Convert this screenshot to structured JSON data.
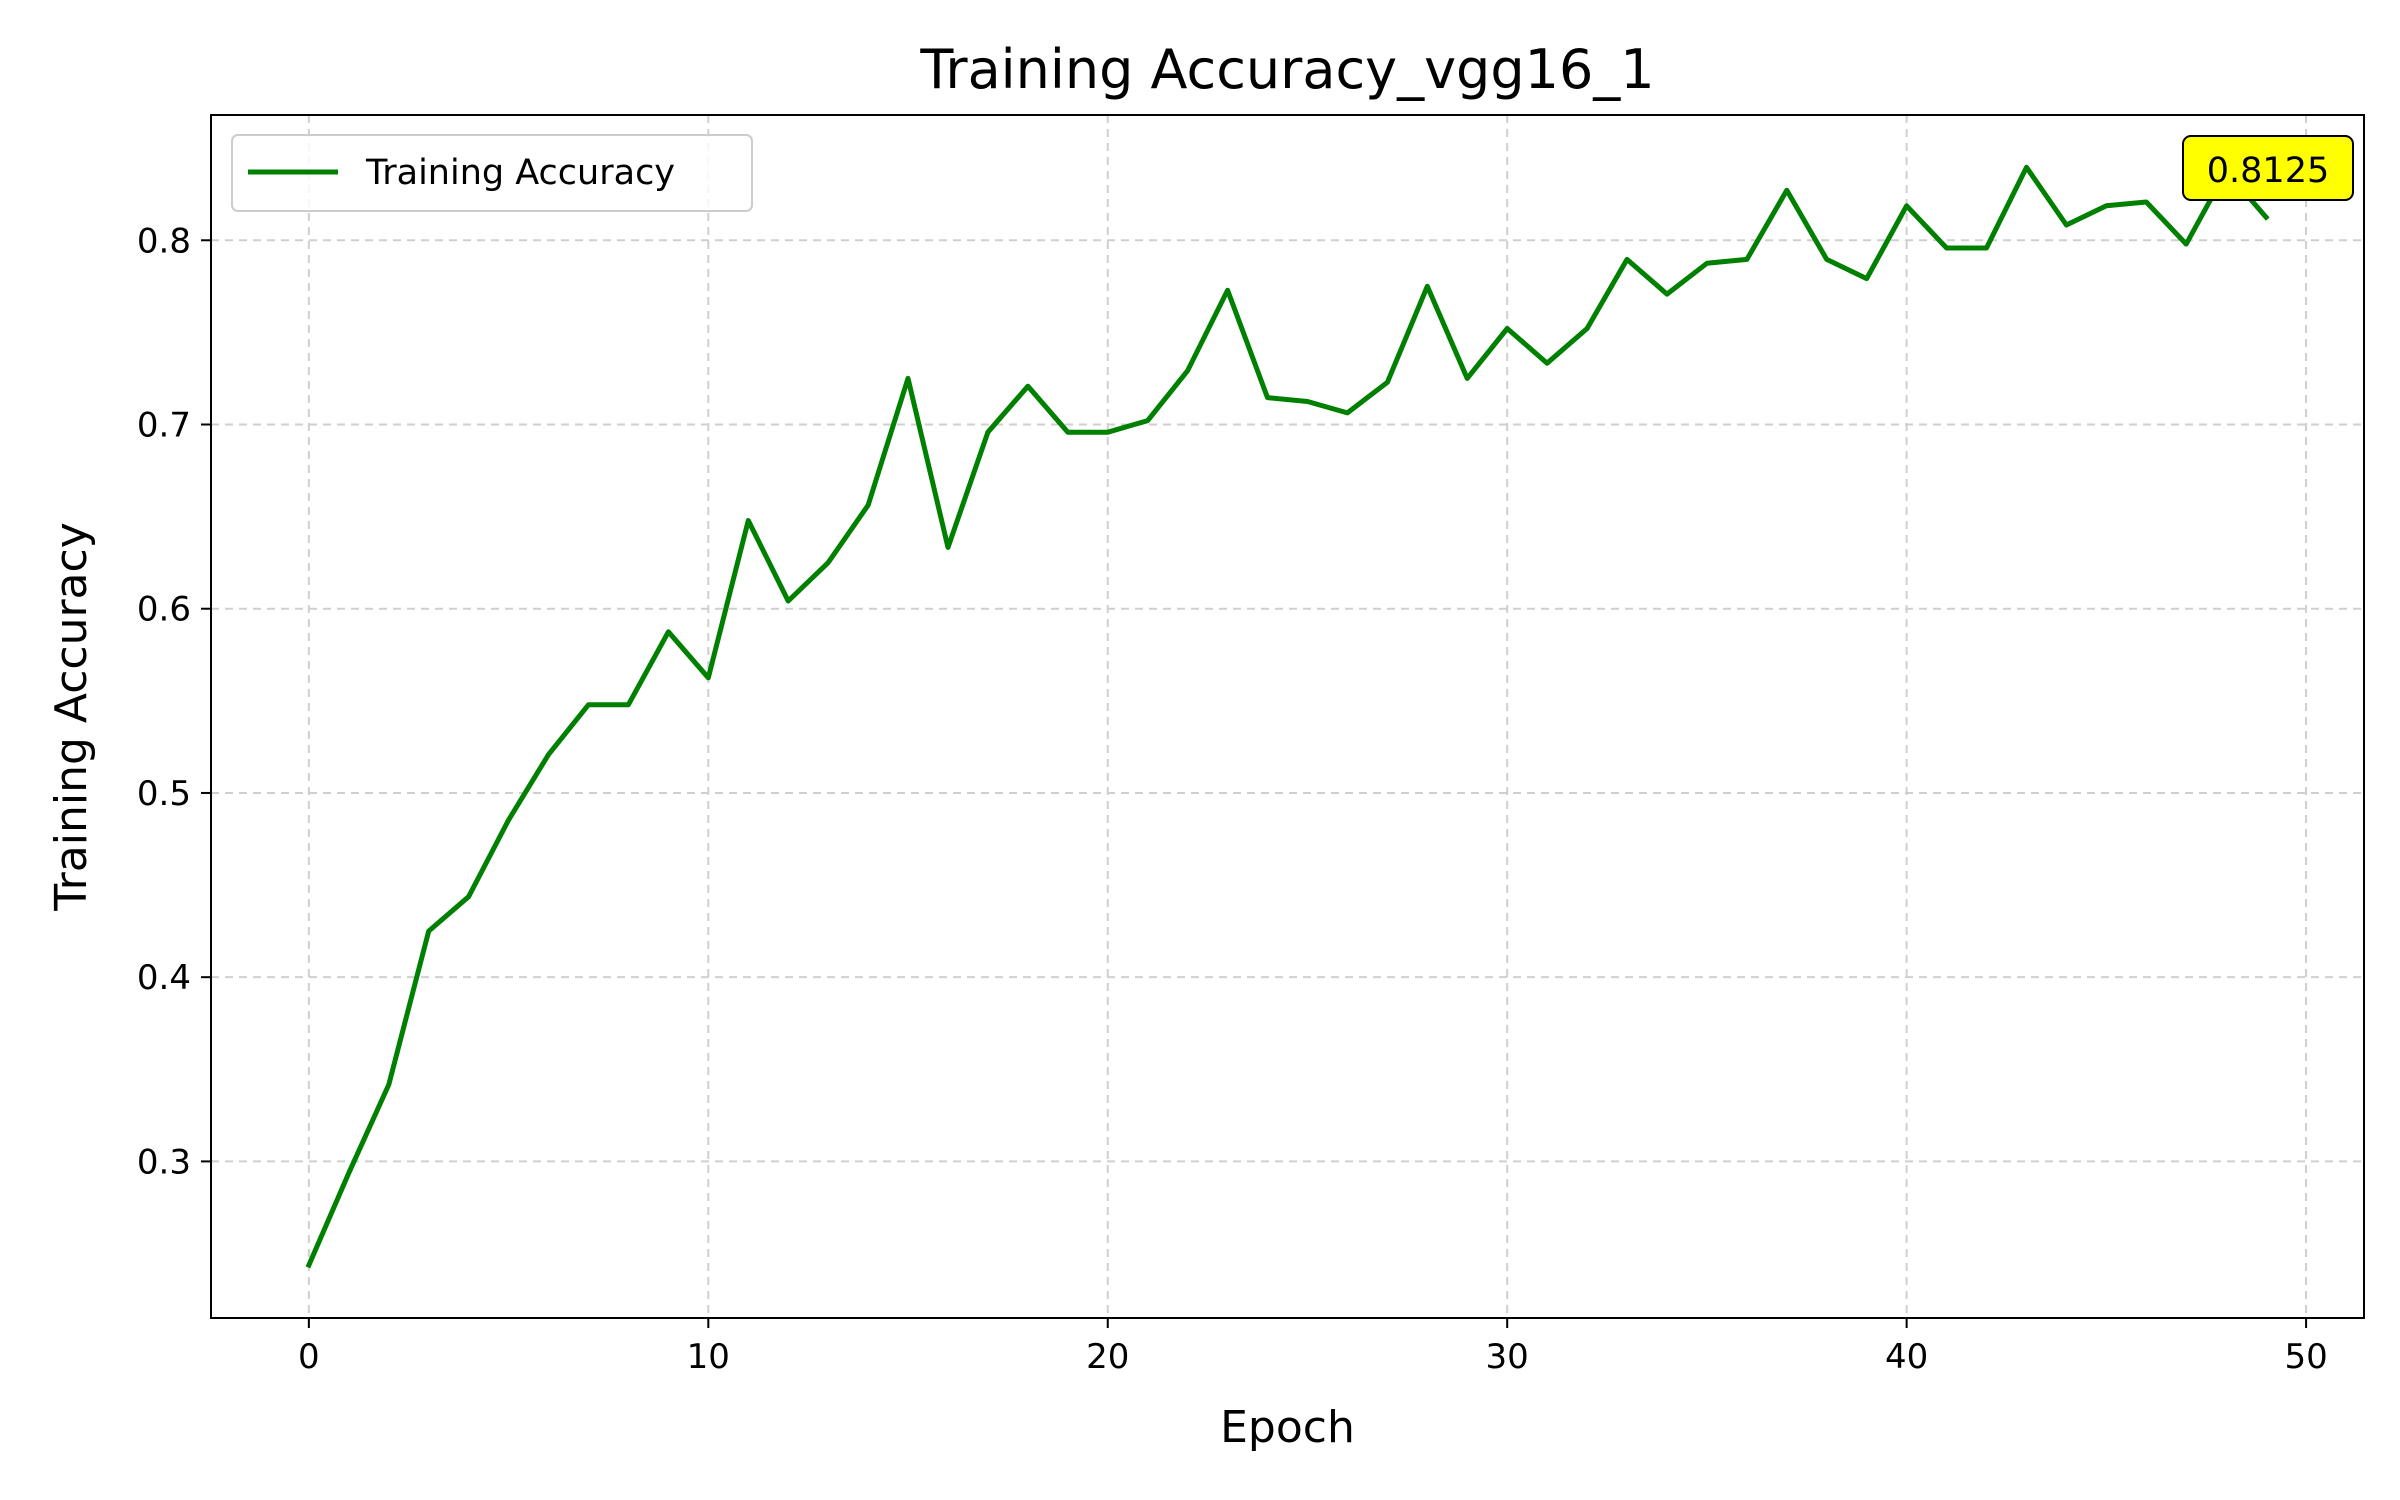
{
  "chart_data": {
    "type": "line",
    "title": "Training Accuracy_vgg16_1",
    "xlabel": "Epoch",
    "ylabel": "Training Accuracy",
    "xlim": [
      -2.45,
      51.45
    ],
    "ylim": [
      0.215,
      0.868
    ],
    "xticks": [
      0,
      10,
      20,
      30,
      40,
      50
    ],
    "yticks": [
      0.3,
      0.4,
      0.5,
      0.6,
      0.7,
      0.8
    ],
    "grid": true,
    "legend_position": "upper left",
    "series": [
      {
        "name": "Training Accuracy",
        "color": "#008000",
        "x": [
          0,
          1,
          2,
          3,
          4,
          5,
          6,
          7,
          8,
          9,
          10,
          11,
          12,
          13,
          14,
          15,
          16,
          17,
          18,
          19,
          20,
          21,
          22,
          23,
          24,
          25,
          26,
          27,
          28,
          29,
          30,
          31,
          32,
          33,
          34,
          35,
          36,
          37,
          38,
          39,
          40,
          41,
          42,
          43,
          44,
          45,
          46,
          47,
          48,
          49
        ],
        "y": [
          0.2437,
          0.2937,
          0.3417,
          0.425,
          0.4437,
          0.4854,
          0.5208,
          0.5479,
          0.5479,
          0.5875,
          0.5625,
          0.6479,
          0.6042,
          0.625,
          0.6562,
          0.725,
          0.6333,
          0.6958,
          0.7208,
          0.6958,
          0.6958,
          0.7021,
          0.7292,
          0.7729,
          0.7146,
          0.7125,
          0.7063,
          0.7229,
          0.775,
          0.725,
          0.7521,
          0.7333,
          0.7521,
          0.7896,
          0.7708,
          0.7875,
          0.7896,
          0.8271,
          0.7896,
          0.7792,
          0.8187,
          0.7958,
          0.7958,
          0.8396,
          0.8083,
          0.8187,
          0.8208,
          0.7979,
          0.8375,
          0.8125
        ]
      }
    ],
    "annotation": {
      "text": "0.8125",
      "x": 49,
      "y": 0.8125,
      "background": "#ffff00"
    }
  }
}
